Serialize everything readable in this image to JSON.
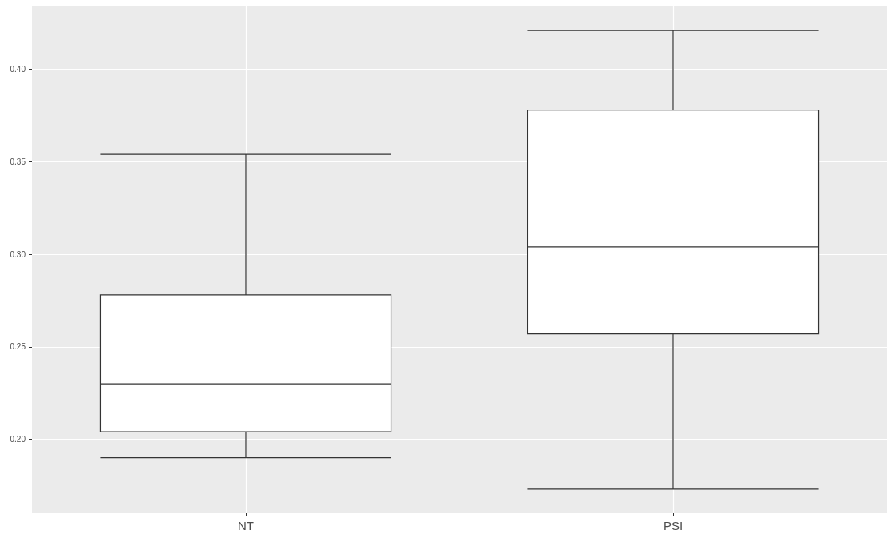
{
  "chart_data": {
    "type": "box",
    "categories": [
      "NT",
      "PSI"
    ],
    "boxes": [
      {
        "low": 0.19,
        "q1": 0.204,
        "median": 0.23,
        "q3": 0.278,
        "high": 0.354
      },
      {
        "low": 0.173,
        "q1": 0.257,
        "median": 0.304,
        "q3": 0.378,
        "high": 0.421
      }
    ],
    "ylim": [
      0.16,
      0.434
    ],
    "yticks": [
      {
        "value": 0.2,
        "label": "0.20"
      },
      {
        "value": 0.25,
        "label": "0.25"
      },
      {
        "value": 0.3,
        "label": "0.30"
      },
      {
        "value": 0.35,
        "label": "0.35"
      },
      {
        "value": 0.4,
        "label": "0.40"
      }
    ],
    "grid": true
  }
}
